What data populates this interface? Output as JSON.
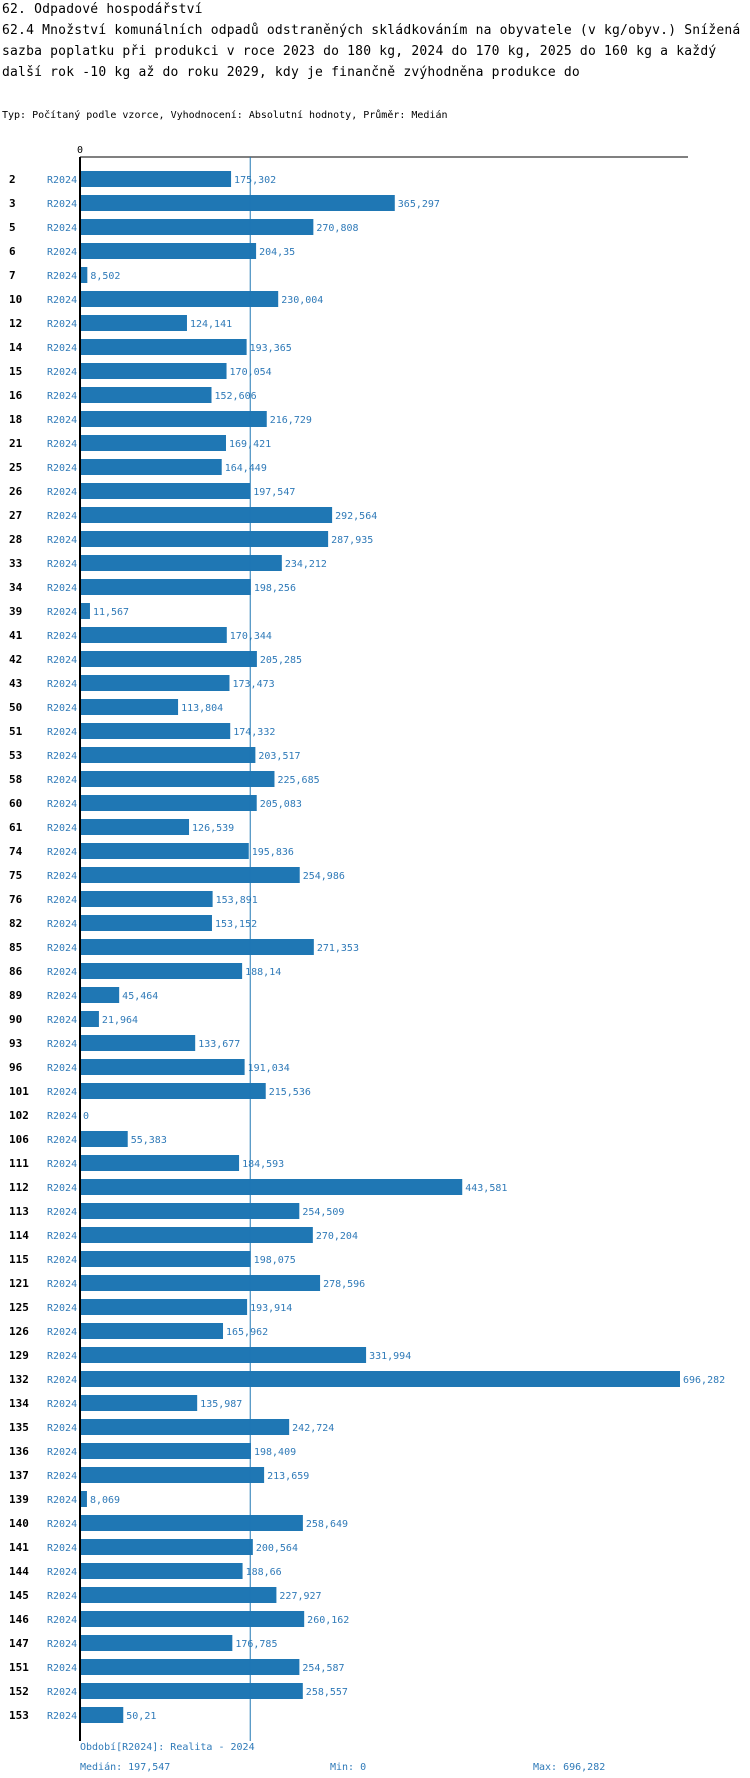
{
  "header": {
    "section": "62. Odpadové hospodářství",
    "subtitle": "62.4 Množství komunálních odpadů odstraněných skládkováním na obyvatele (v kg/obyv.) Snížená sazba poplatku při produkci v roce 2023 do 180 kg, 2024 do 170 kg, 2025 do 160 kg a každý další rok -10 kg až do roku 2029, kdy je finančně zvýhodněna produkce do",
    "meta": "Typ: Počítaný podle vzorce, Vyhodnocení: Absolutní hodnoty, Průměr: Medián"
  },
  "colors": {
    "bar": "#1f77b4",
    "label": "#2f7ab8",
    "axis": "#000000"
  },
  "chart_data": {
    "type": "bar",
    "orientation": "horizontal",
    "axis_zero_label": "0",
    "period_label": "R2024",
    "xlim": [
      0,
      696.282
    ],
    "median_line": 197.547,
    "categories": [
      "2",
      "3",
      "5",
      "6",
      "7",
      "10",
      "12",
      "14",
      "15",
      "16",
      "18",
      "21",
      "25",
      "26",
      "27",
      "28",
      "33",
      "34",
      "39",
      "41",
      "42",
      "43",
      "50",
      "51",
      "53",
      "58",
      "60",
      "61",
      "74",
      "75",
      "76",
      "82",
      "85",
      "86",
      "89",
      "90",
      "93",
      "96",
      "101",
      "102",
      "106",
      "111",
      "112",
      "113",
      "114",
      "115",
      "121",
      "125",
      "126",
      "129",
      "132",
      "134",
      "135",
      "136",
      "137",
      "139",
      "140",
      "141",
      "144",
      "145",
      "146",
      "147",
      "151",
      "152",
      "153"
    ],
    "values": [
      175.302,
      365.297,
      270.808,
      204.35,
      8.502,
      230.004,
      124.141,
      193.365,
      170.054,
      152.606,
      216.729,
      169.421,
      164.449,
      197.547,
      292.564,
      287.935,
      234.212,
      198.256,
      11.567,
      170.344,
      205.285,
      173.473,
      113.804,
      174.332,
      203.517,
      225.685,
      205.083,
      126.539,
      195.836,
      254.986,
      153.891,
      153.152,
      271.353,
      188.14,
      45.464,
      21.964,
      133.677,
      191.034,
      215.536,
      0,
      55.383,
      184.593,
      443.581,
      254.509,
      270.204,
      198.075,
      278.596,
      193.914,
      165.962,
      331.994,
      696.282,
      135.987,
      242.724,
      198.409,
      213.659,
      8.069,
      258.649,
      200.564,
      188.66,
      227.927,
      260.162,
      176.785,
      254.587,
      258.557,
      50.21
    ],
    "value_labels": [
      "175,302",
      "365,297",
      "270,808",
      "204,35",
      "8,502",
      "230,004",
      "124,141",
      "193,365",
      "170,054",
      "152,606",
      "216,729",
      "169,421",
      "164,449",
      "197,547",
      "292,564",
      "287,935",
      "234,212",
      "198,256",
      "11,567",
      "170,344",
      "205,285",
      "173,473",
      "113,804",
      "174,332",
      "203,517",
      "225,685",
      "205,083",
      "126,539",
      "195,836",
      "254,986",
      "153,891",
      "153,152",
      "271,353",
      "188,14",
      "45,464",
      "21,964",
      "133,677",
      "191,034",
      "215,536",
      "0",
      "55,383",
      "184,593",
      "443,581",
      "254,509",
      "270,204",
      "198,075",
      "278,596",
      "193,914",
      "165,962",
      "331,994",
      "696,282",
      "135,987",
      "242,724",
      "198,409",
      "213,659",
      "8,069",
      "258,649",
      "200,564",
      "188,66",
      "227,927",
      "260,162",
      "176,785",
      "254,587",
      "258,557",
      "50,21"
    ]
  },
  "footer": {
    "period": "Období[R2024]: Realita - 2024",
    "median": "Medián: 197,547",
    "min": "Min: 0",
    "max": "Max: 696,282"
  }
}
